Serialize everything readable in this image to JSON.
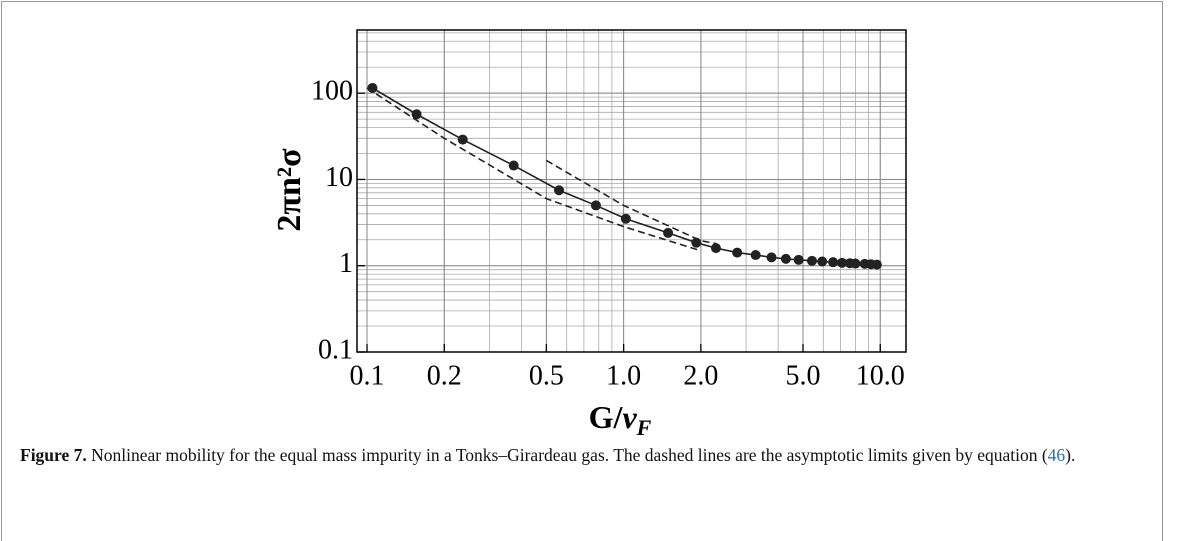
{
  "chart_data": {
    "type": "line",
    "xlabel_parts": [
      "G/",
      "v",
      "F"
    ],
    "ylabel": "2πn²σ",
    "xscale": "log",
    "yscale": "log",
    "grid": true,
    "xlim": [
      0.0914,
      12.6
    ],
    "ylim": [
      0.1,
      540
    ],
    "xticks": [
      0.1,
      0.2,
      0.5,
      {
        "value": 1,
        "label": "1.0"
      },
      {
        "value": 2,
        "label": "2.0"
      },
      {
        "value": 5,
        "label": "5.0"
      },
      {
        "value": 10,
        "label": "10.0"
      }
    ],
    "yticks": [
      0.1,
      1,
      10,
      100
    ],
    "series": [
      {
        "color": "#222222",
        "dash": "solid",
        "markers": true,
        "x": [
          0.105,
          0.156,
          0.236,
          0.373,
          0.56,
          0.78,
          1.02,
          1.49,
          1.92,
          2.29,
          2.77,
          3.27,
          3.77,
          4.29,
          4.81,
          5.42,
          5.94,
          6.55,
          7.1,
          7.62,
          8.0,
          8.7,
          9.2,
          9.7
        ],
        "values": [
          115,
          57,
          29,
          14.5,
          7.5,
          5,
          3.5,
          2.4,
          1.85,
          1.6,
          1.42,
          1.33,
          1.25,
          1.2,
          1.17,
          1.14,
          1.12,
          1.1,
          1.08,
          1.07,
          1.06,
          1.05,
          1.04,
          1.03
        ]
      },
      {
        "color": "#222222",
        "dash": "dashed",
        "markers": false,
        "x": [
          0.1,
          0.2,
          0.5,
          1,
          2
        ],
        "values": [
          115,
          30,
          6.0,
          2.84,
          1.49
        ]
      },
      {
        "color": "#222222",
        "dash": "dashed",
        "markers": false,
        "x": [
          0.5,
          1,
          2,
          2.3
        ],
        "values": [
          16.6,
          5.0,
          1.95,
          1.8
        ]
      }
    ]
  },
  "caption": {
    "label": "Figure 7.",
    "text": " Nonlinear mobility for the equal mass impurity in a Tonks–Girardeau gas. The dashed lines are the asymptotic limits given by equation (",
    "ref": "46",
    "end": ")."
  }
}
